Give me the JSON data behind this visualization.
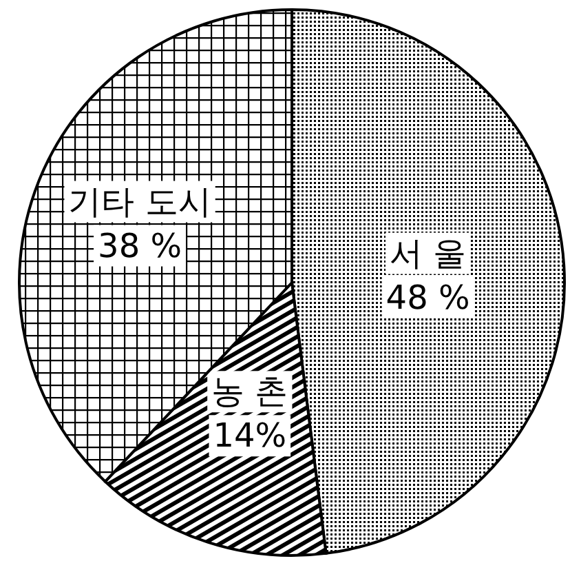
{
  "chart_data": {
    "type": "pie",
    "categories": [
      "서 울",
      "농 촌",
      "기타 도시"
    ],
    "values": [
      48,
      14,
      38
    ],
    "value_labels": [
      "48 %",
      "14%",
      "38 %"
    ],
    "colors": [
      "#000000",
      "#000000",
      "#000000"
    ]
  }
}
